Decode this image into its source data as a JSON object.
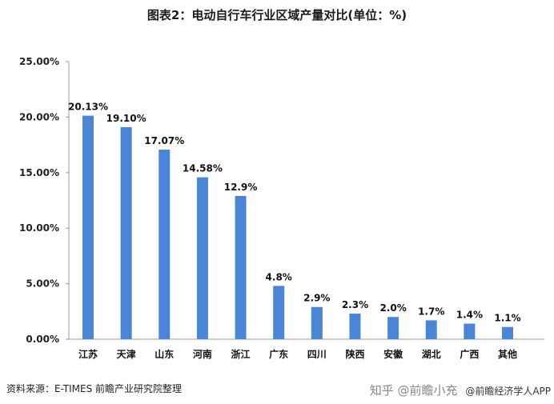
{
  "chart_data": {
    "type": "bar",
    "title": "图表2：电动自行车行业区域产量对比(单位：%)",
    "categories": [
      "江苏",
      "天津",
      "山东",
      "河南",
      "浙江",
      "广东",
      "四川",
      "陕西",
      "安徽",
      "湖北",
      "广西",
      "其他"
    ],
    "values": [
      20.13,
      19.1,
      17.07,
      14.58,
      12.9,
      4.8,
      2.9,
      2.3,
      2.0,
      1.7,
      1.4,
      1.1
    ],
    "value_labels": [
      "20.13%",
      "19.10%",
      "17.07%",
      "14.58%",
      "12.9%",
      "4.8%",
      "2.9%",
      "2.3%",
      "2.0%",
      "1.7%",
      "1.4%",
      "1.1%"
    ],
    "ylim": [
      0,
      25
    ],
    "yticks": [
      "0.00%",
      "5.00%",
      "10.00%",
      "15.00%",
      "20.00%",
      "25.00%"
    ],
    "xlabel": "",
    "ylabel": "",
    "grid": false,
    "bar_color": "#4a86d8"
  },
  "footer": {
    "source": "资料来源：E-TIMES 前瞻产业研究院整理",
    "brand": "知乎 @前瞻小充",
    "app": "@前瞻经济学人APP"
  },
  "watermark": "前瞻产业研究院"
}
